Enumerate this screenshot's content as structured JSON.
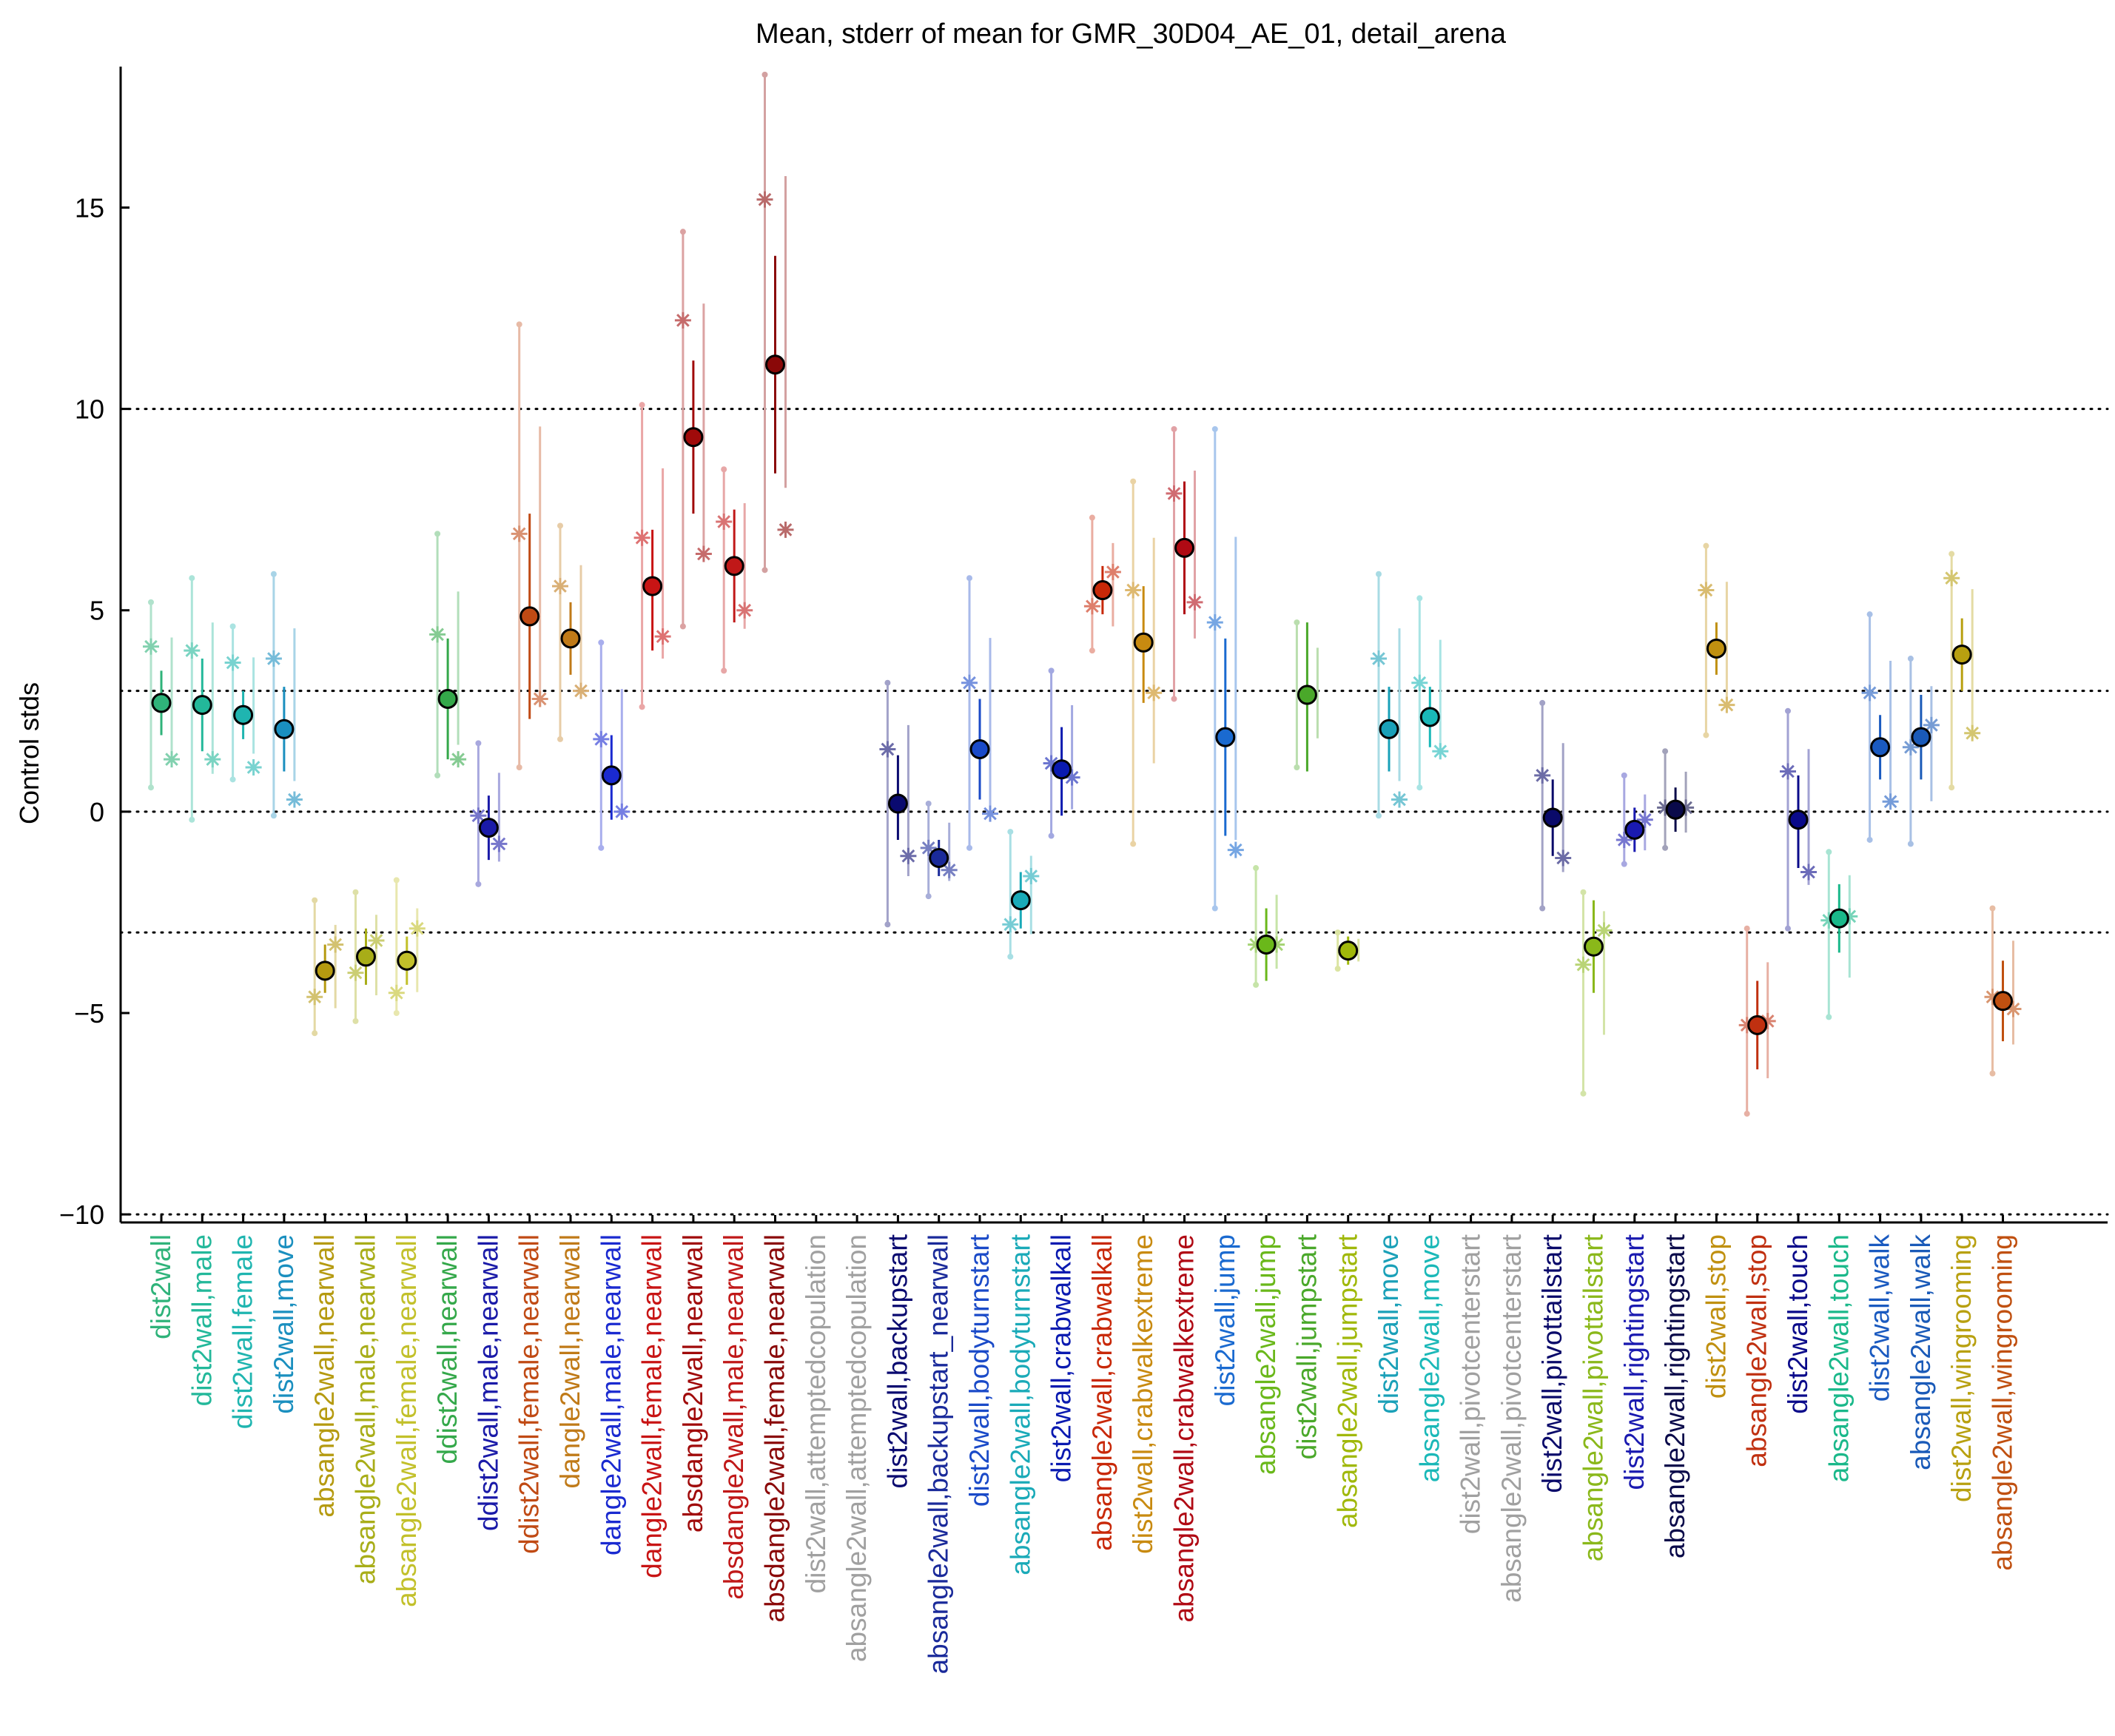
{
  "chart_data": {
    "type": "scatter",
    "title": "Mean, stderr of mean for GMR_30D04_AE_01, detail_arena",
    "ylabel": "Control stds",
    "ylim": [
      -10.2,
      18.5
    ],
    "yticks": [
      -10,
      -5,
      0,
      5,
      10,
      15
    ],
    "ytick_labels": [
      "−10",
      "−5",
      "0",
      "5",
      "10",
      "15"
    ],
    "reference_lines": [
      -10,
      -3,
      0,
      3,
      10
    ],
    "grid": false,
    "legend": "none",
    "categories": [
      "dist2wall",
      "dist2wall,male",
      "dist2wall,female",
      "dist2wall,move",
      "absangle2wall,nearwall",
      "absangle2wall,male,nearwall",
      "absangle2wall,female,nearwall",
      "ddist2wall,nearwall",
      "ddist2wall,male,nearwall",
      "ddist2wall,female,nearwall",
      "dangle2wall,nearwall",
      "dangle2wall,male,nearwall",
      "dangle2wall,female,nearwall",
      "absdangle2wall,nearwall",
      "absdangle2wall,male,nearwall",
      "absdangle2wall,female,nearwall",
      "dist2wall,attemptedcopulation",
      "absangle2wall,attemptedcopulation",
      "dist2wall,backupstart",
      "absangle2wall,backupstart_nearwall",
      "dist2wall,bodyturnstart",
      "absangle2wall,bodyturnstart",
      "dist2wall,crabwalkall",
      "absangle2wall,crabwalkall",
      "dist2wall,crabwalkextreme",
      "absangle2wall,crabwalkextreme",
      "dist2wall,jump",
      "absangle2wall,jump",
      "dist2wall,jumpstart",
      "absangle2wall,jumpstart",
      "dist2wall,move",
      "absangle2wall,move",
      "dist2wall,pivotcenterstart",
      "absangle2wall,pivotcenterstart",
      "dist2wall,pivottailstart",
      "absangle2wall,pivottailstart",
      "dist2wall,rightingstart",
      "absangle2wall,rightingstart",
      "dist2wall,stop",
      "absangle2wall,stop",
      "dist2wall,touch",
      "absangle2wall,touch",
      "dist2wall,walk",
      "absangle2wall,walk",
      "dist2wall,wingrooming",
      "absangle2wall,wingrooming"
    ],
    "colors": [
      "#2fb37a",
      "#23b89a",
      "#1fb5b0",
      "#1a8fbf",
      "#b59a10",
      "#a8ad18",
      "#c2c02a",
      "#34a84a",
      "#1a1aa8",
      "#c04a14",
      "#c07a18",
      "#1a2ad0",
      "#c81414",
      "#a00a0a",
      "#c01818",
      "#8a0808",
      "#a0a0a0",
      "#a0a0a0",
      "#0a0a70",
      "#1a2a9a",
      "#1a4ac8",
      "#1aaab8",
      "#0a1ab0",
      "#c82808",
      "#c88a10",
      "#b00a14",
      "#1a6ad0",
      "#6ab81a",
      "#4aa82a",
      "#a0b80a",
      "#1aa0b8",
      "#1ab8b8",
      "#a0a0a0",
      "#a0a0a0",
      "#0a0a6a",
      "#8ab81a",
      "#1a1ab0",
      "#0a0a4a",
      "#c09010",
      "#c03010",
      "#0a0a8a",
      "#1ab88a",
      "#1a5ac0",
      "#1a5ab8",
      "#b8a010",
      "#c05010"
    ],
    "series": [
      {
        "name": "",
        "values": [
          2.7,
          2.65,
          2.4,
          2.05,
          -3.95,
          -3.6,
          -3.7,
          2.8,
          -0.4,
          4.85,
          4.3,
          0.9,
          5.6,
          9.3,
          6.1,
          11.1,
          null,
          null,
          0.2,
          -1.15,
          1.55,
          -2.2,
          1.05,
          5.5,
          4.2,
          6.55,
          1.85,
          -3.3,
          2.9,
          -3.45,
          2.05,
          2.35,
          null,
          null,
          -0.15,
          -3.35,
          -0.45,
          0.05,
          4.05,
          -5.3,
          -0.2,
          -2.65,
          1.6,
          1.85,
          3.9,
          -4.7
        ]
      }
    ],
    "error_low": [
      1.9,
      1.5,
      1.8,
      1.0,
      -4.5,
      -4.3,
      -4.3,
      1.3,
      -1.2,
      2.3,
      3.4,
      -0.2,
      4.0,
      7.4,
      4.7,
      8.4,
      null,
      null,
      -0.7,
      -1.6,
      0.3,
      -2.9,
      -0.1,
      4.9,
      2.7,
      4.9,
      -0.6,
      -4.2,
      1.0,
      -3.8,
      1.0,
      1.6,
      null,
      null,
      -1.1,
      -4.5,
      -1.0,
      -0.5,
      3.4,
      -6.4,
      -1.4,
      -3.5,
      0.8,
      0.8,
      3.0,
      -5.7
    ],
    "error_high": [
      3.5,
      3.8,
      3.0,
      3.1,
      -3.3,
      -2.9,
      -3.1,
      4.3,
      0.4,
      7.4,
      5.2,
      1.9,
      7.0,
      11.2,
      7.5,
      13.8,
      null,
      null,
      1.4,
      -0.7,
      2.8,
      -1.5,
      2.1,
      6.1,
      5.6,
      8.2,
      4.3,
      -2.4,
      4.7,
      -3.1,
      3.1,
      3.1,
      null,
      null,
      0.8,
      -2.2,
      0.1,
      0.6,
      4.7,
      -4.2,
      0.9,
      -1.8,
      2.4,
      2.9,
      4.8,
      -3.7
    ],
    "male_values": [
      4.1,
      4.0,
      3.7,
      3.8,
      -4.6,
      -4.0,
      -4.5,
      4.4,
      -0.1,
      6.9,
      5.6,
      1.8,
      6.8,
      12.2,
      7.2,
      15.2,
      null,
      null,
      1.55,
      -0.9,
      3.2,
      -2.8,
      1.2,
      5.1,
      5.5,
      7.9,
      4.7,
      -3.3,
      null,
      null,
      3.8,
      3.2,
      null,
      null,
      0.9,
      -3.8,
      -0.7,
      0.1,
      5.5,
      -5.3,
      1.0,
      -2.7,
      2.95,
      1.6,
      5.8,
      -4.6
    ],
    "female_values": [
      1.3,
      1.3,
      1.1,
      0.3,
      -3.3,
      -3.2,
      -2.9,
      1.3,
      -0.8,
      2.8,
      3.0,
      0.0,
      4.35,
      6.4,
      5.0,
      7.0,
      null,
      null,
      -1.1,
      -1.45,
      -0.05,
      -1.6,
      0.85,
      5.95,
      2.95,
      5.2,
      -0.95,
      -3.3,
      null,
      null,
      0.3,
      1.5,
      null,
      null,
      -1.15,
      -2.95,
      -0.2,
      0.1,
      2.65,
      -5.2,
      -1.5,
      -2.6,
      0.25,
      2.15,
      1.95,
      -4.9
    ],
    "spread_low": [
      0.6,
      -0.2,
      0.8,
      -0.1,
      -5.5,
      -5.2,
      -5.0,
      0.9,
      -1.8,
      1.1,
      1.8,
      -0.9,
      2.6,
      4.6,
      3.5,
      6.0,
      null,
      null,
      -2.8,
      -2.1,
      -0.9,
      -3.6,
      -0.6,
      4.0,
      -0.8,
      2.8,
      -2.4,
      -4.3,
      1.1,
      -3.9,
      -0.1,
      0.6,
      null,
      null,
      -2.4,
      -7.0,
      -1.3,
      -0.9,
      1.9,
      -7.5,
      -2.9,
      -5.1,
      -0.7,
      -0.8,
      0.6,
      -6.5
    ],
    "spread_high": [
      5.2,
      5.8,
      4.6,
      5.9,
      -2.2,
      -2.0,
      -1.7,
      6.9,
      1.7,
      12.1,
      7.1,
      4.2,
      10.1,
      14.4,
      8.5,
      18.3,
      null,
      null,
      3.2,
      0.2,
      5.8,
      -0.5,
      3.5,
      7.3,
      8.2,
      9.5,
      9.5,
      -1.4,
      4.7,
      -3.0,
      5.9,
      5.3,
      null,
      null,
      2.7,
      -2.0,
      0.9,
      1.5,
      6.6,
      -2.9,
      2.5,
      -1.0,
      4.9,
      3.8,
      6.4,
      -2.4
    ]
  }
}
